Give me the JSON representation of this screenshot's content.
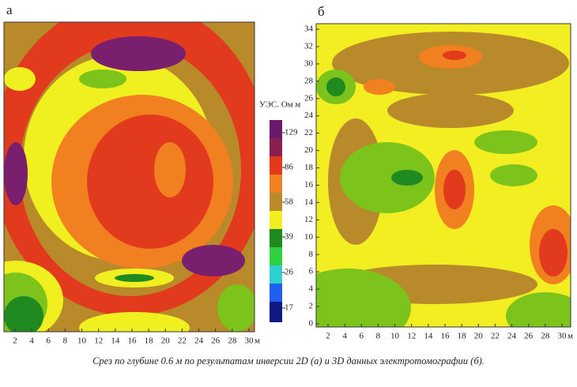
{
  "panels": [
    {
      "label": "а",
      "x_ticks": [
        2,
        4,
        6,
        8,
        10,
        12,
        14,
        16,
        18,
        20,
        22,
        24,
        26,
        28,
        30
      ],
      "x_unit": "м"
    },
    {
      "label": "б",
      "x_ticks": [
        2,
        4,
        6,
        8,
        10,
        12,
        14,
        16,
        18,
        20,
        22,
        24,
        26,
        28,
        30
      ],
      "x_unit": "м",
      "y_ticks": [
        0,
        2,
        4,
        6,
        8,
        10,
        12,
        14,
        16,
        18,
        20,
        22,
        24,
        26,
        28,
        30,
        32,
        34
      ]
    }
  ],
  "colorbar": {
    "title": "УЭС. Ом м",
    "ticks": [
      129,
      86,
      58,
      39,
      26,
      17
    ]
  },
  "caption": "Срез по глубине 0.6 м по результатам инверсии 2D (а) и 3D данных электротомографии (б)."
}
